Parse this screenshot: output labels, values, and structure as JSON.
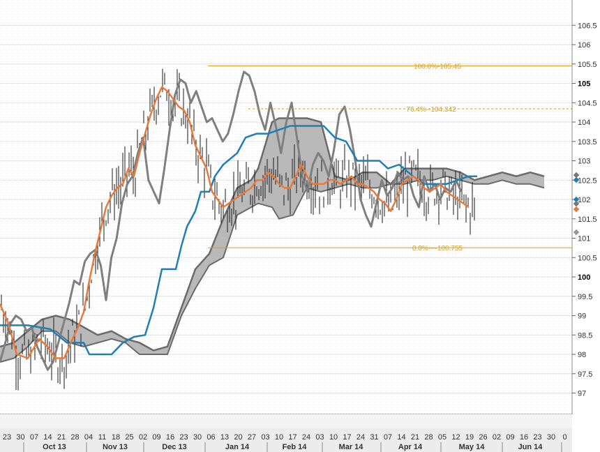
{
  "chart_data": {
    "type": "line",
    "ylim": [
      96.4,
      107.0
    ],
    "y_ticks": [
      97,
      97.5,
      98,
      98.5,
      99,
      99.5,
      100,
      100.5,
      101,
      101.5,
      102,
      102.5,
      103,
      103.5,
      104,
      104.5,
      105,
      105.5,
      106,
      106.5
    ],
    "y_tick_labels": [
      "97",
      "97.5",
      "98",
      "98.5",
      "99",
      "99.5",
      "100",
      "100.5",
      "101",
      "101.5",
      "102",
      "102.5",
      "103",
      "103.5",
      "104",
      "104.5",
      "105",
      "105.5",
      "106",
      "106.5"
    ],
    "y_bold_ticks": [
      "100",
      "105"
    ],
    "x_ticks": [
      "23",
      "30",
      "07",
      "14",
      "21",
      "28",
      "04",
      "11",
      "18",
      "25",
      "02",
      "09",
      "16",
      "23",
      "30",
      "06",
      "13",
      "20",
      "27",
      "03",
      "10",
      "17",
      "24",
      "03",
      "10",
      "17",
      "24",
      "31",
      "07",
      "14",
      "21",
      "28",
      "05",
      "12",
      "19",
      "26",
      "02",
      "09",
      "16",
      "23",
      "30",
      "0"
    ],
    "months": [
      "Oct 13",
      "Nov 13",
      "Dec 13",
      "Jan 14",
      "Feb 14",
      "Mar 14",
      "Apr 14",
      "May 14",
      "Jun 14"
    ],
    "fib_levels": [
      {
        "label": "100.0%-105.45",
        "value": 105.45
      },
      {
        "label": "76.4%--104.342",
        "value": 104.342
      },
      {
        "label": "0.0%----100.755",
        "value": 100.755
      }
    ],
    "grid": true,
    "series": [
      {
        "color": "#7f7f7f",
        "values": [
          [
            0,
            97.8
          ],
          [
            4,
            98.3
          ],
          [
            8,
            98.8
          ],
          [
            12,
            99.0
          ],
          [
            16,
            98.9
          ],
          [
            20,
            98.6
          ],
          [
            24,
            98.7
          ],
          [
            28,
            98.2
          ],
          [
            32,
            97.9
          ],
          [
            36,
            97.6
          ],
          [
            40,
            97.8
          ],
          [
            44,
            98.3
          ],
          [
            48,
            98.8
          ],
          [
            52,
            99.3
          ],
          [
            56,
            99.9
          ],
          [
            60,
            99.8
          ],
          [
            64,
            100.4
          ],
          [
            68,
            100.6
          ],
          [
            72,
            100.7
          ],
          [
            76,
            100.3
          ],
          [
            80,
            99.4
          ],
          [
            84,
            100.5
          ],
          [
            88,
            101.0
          ],
          [
            92,
            101.9
          ],
          [
            96,
            102.4
          ],
          [
            100,
            102.6
          ],
          [
            104,
            103.2
          ],
          [
            108,
            103.6
          ],
          [
            112,
            102.5
          ],
          [
            116,
            102.2
          ],
          [
            120,
            101.9
          ],
          [
            124,
            102.8
          ],
          [
            128,
            103.8
          ],
          [
            132,
            104.7
          ],
          [
            136,
            105.1
          ],
          [
            140,
            105.0
          ],
          [
            144,
            104.5
          ],
          [
            148,
            104.8
          ],
          [
            152,
            104.4
          ],
          [
            156,
            104.0
          ],
          [
            160,
            104.1
          ],
          [
            164,
            103.8
          ],
          [
            168,
            103.5
          ],
          [
            172,
            103.7
          ],
          [
            176,
            104.2
          ],
          [
            180,
            104.8
          ],
          [
            184,
            105.3
          ],
          [
            188,
            105.2
          ],
          [
            192,
            104.8
          ],
          [
            196,
            104.2
          ],
          [
            200,
            103.8
          ],
          [
            204,
            104.5
          ],
          [
            208,
            103.9
          ],
          [
            212,
            103.2
          ],
          [
            216,
            104.0
          ],
          [
            220,
            104.5
          ],
          [
            224,
            103.6
          ],
          [
            228,
            102.6
          ],
          [
            232,
            102.2
          ],
          [
            236,
            102.9
          ],
          [
            240,
            103.2
          ],
          [
            244,
            103.0
          ],
          [
            248,
            102.6
          ],
          [
            252,
            103.3
          ],
          [
            256,
            104.2
          ],
          [
            260,
            104.4
          ],
          [
            264,
            103.8
          ],
          [
            268,
            103.0
          ],
          [
            272,
            102.0
          ],
          [
            276,
            101.6
          ],
          [
            280,
            101.3
          ],
          [
            284,
            101.9
          ],
          [
            288,
            102.5
          ],
          [
            292,
            102.1
          ],
          [
            296,
            102.3
          ],
          [
            300,
            102.7
          ],
          [
            304,
            102.5
          ],
          [
            308,
            102.6
          ],
          [
            312,
            102.1
          ],
          [
            316,
            101.8
          ],
          [
            320,
            102.6
          ],
          [
            324,
            102.2
          ],
          [
            328,
            102.4
          ],
          [
            332,
            102.0
          ],
          [
            336,
            102.3
          ],
          [
            340,
            102.2
          ],
          [
            344,
            102.5
          ],
          [
            348,
            102.2
          ]
        ]
      },
      {
        "color": "#1f7fb4",
        "values": [
          [
            0,
            98.75
          ],
          [
            20,
            98.75
          ],
          [
            36,
            98.65
          ],
          [
            48,
            98.3
          ],
          [
            60,
            98.3
          ],
          [
            64,
            98.0
          ],
          [
            72,
            98.0
          ],
          [
            80,
            98.0
          ],
          [
            88,
            98.3
          ],
          [
            96,
            98.45
          ],
          [
            104,
            98.5
          ],
          [
            110,
            99.2
          ],
          [
            116,
            100.2
          ],
          [
            120,
            100.2
          ],
          [
            126,
            100.2
          ],
          [
            130,
            100.8
          ],
          [
            134,
            101.3
          ],
          [
            140,
            101.7
          ],
          [
            144,
            102.2
          ],
          [
            150,
            102.2
          ],
          [
            154,
            102.6
          ],
          [
            160,
            102.9
          ],
          [
            170,
            103.2
          ],
          [
            176,
            103.6
          ],
          [
            184,
            103.7
          ],
          [
            192,
            103.7
          ],
          [
            200,
            103.8
          ],
          [
            208,
            103.9
          ],
          [
            216,
            103.9
          ],
          [
            224,
            103.9
          ],
          [
            232,
            103.9
          ],
          [
            240,
            103.6
          ],
          [
            248,
            103.5
          ],
          [
            256,
            103.0
          ],
          [
            264,
            103.0
          ],
          [
            272,
            103.0
          ],
          [
            278,
            102.8
          ],
          [
            286,
            102.9
          ],
          [
            296,
            102.6
          ],
          [
            304,
            102.4
          ],
          [
            312,
            102.4
          ],
          [
            320,
            102.4
          ],
          [
            328,
            102.5
          ],
          [
            336,
            102.6
          ],
          [
            342,
            102.6
          ]
        ]
      },
      {
        "color": "#e8793a",
        "values": [
          [
            0,
            99.3
          ],
          [
            6,
            98.8
          ],
          [
            12,
            98.0
          ],
          [
            20,
            97.9
          ],
          [
            28,
            98.4
          ],
          [
            34,
            98.2
          ],
          [
            40,
            97.9
          ],
          [
            46,
            97.9
          ],
          [
            52,
            98.4
          ],
          [
            56,
            98.7
          ],
          [
            60,
            99.1
          ],
          [
            64,
            99.9
          ],
          [
            68,
            100.6
          ],
          [
            72,
            101.2
          ],
          [
            76,
            101.8
          ],
          [
            80,
            102.1
          ],
          [
            84,
            102.3
          ],
          [
            88,
            102.4
          ],
          [
            92,
            102.8
          ],
          [
            96,
            102.6
          ],
          [
            100,
            103.2
          ],
          [
            104,
            103.7
          ],
          [
            108,
            104.2
          ],
          [
            112,
            104.6
          ],
          [
            116,
            104.9
          ],
          [
            120,
            104.8
          ],
          [
            124,
            104.6
          ],
          [
            128,
            104.4
          ],
          [
            132,
            104.3
          ],
          [
            136,
            104.0
          ],
          [
            140,
            103.4
          ],
          [
            144,
            103.1
          ],
          [
            148,
            102.8
          ],
          [
            152,
            102.2
          ],
          [
            156,
            102.0
          ],
          [
            160,
            101.8
          ],
          [
            164,
            101.9
          ],
          [
            168,
            102.0
          ],
          [
            172,
            102.1
          ],
          [
            176,
            102.2
          ],
          [
            180,
            102.3
          ],
          [
            184,
            102.5
          ],
          [
            188,
            102.5
          ],
          [
            192,
            102.7
          ],
          [
            196,
            102.6
          ],
          [
            200,
            102.4
          ],
          [
            204,
            102.3
          ],
          [
            208,
            102.3
          ],
          [
            212,
            102.6
          ],
          [
            216,
            102.9
          ],
          [
            220,
            102.6
          ],
          [
            224,
            102.4
          ],
          [
            228,
            102.4
          ],
          [
            232,
            102.4
          ],
          [
            236,
            102.5
          ],
          [
            240,
            102.5
          ],
          [
            244,
            102.4
          ],
          [
            248,
            102.5
          ],
          [
            252,
            102.6
          ],
          [
            256,
            102.4
          ],
          [
            260,
            102.4
          ],
          [
            264,
            102.3
          ],
          [
            268,
            102.2
          ],
          [
            272,
            102.0
          ],
          [
            276,
            101.9
          ],
          [
            280,
            101.7
          ],
          [
            284,
            102.0
          ],
          [
            288,
            102.4
          ],
          [
            292,
            102.5
          ],
          [
            296,
            102.6
          ],
          [
            300,
            102.5
          ],
          [
            304,
            102.3
          ],
          [
            308,
            102.2
          ],
          [
            312,
            102.3
          ],
          [
            316,
            102.4
          ],
          [
            320,
            102.2
          ],
          [
            324,
            102.1
          ],
          [
            328,
            102.0
          ],
          [
            332,
            101.9
          ],
          [
            336,
            101.8
          ]
        ]
      }
    ]
  }
}
